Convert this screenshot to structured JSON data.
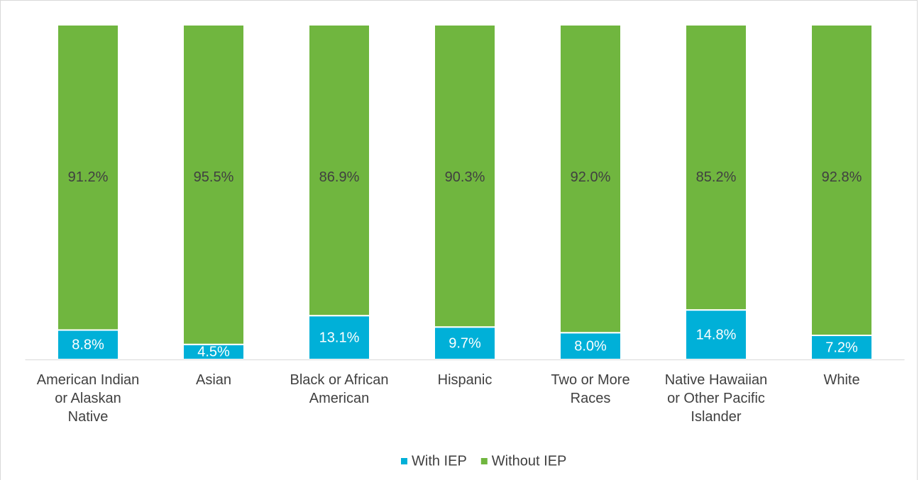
{
  "chart_data": {
    "type": "stacked_bar",
    "categories": [
      "American Indian or Alaskan Native",
      "Asian",
      "Black or African American",
      "Hispanic",
      "Two or More Races",
      "Native Hawaiian or Other Pacific Islander",
      "White"
    ],
    "series": [
      {
        "name": "With IEP",
        "color": "#00b0d8",
        "values": [
          8.8,
          4.5,
          13.1,
          9.7,
          8.0,
          14.8,
          7.2
        ],
        "value_labels": [
          "8.8%",
          "4.5%",
          "13.1%",
          "9.7%",
          "8.0%",
          "14.8%",
          "7.2%"
        ]
      },
      {
        "name": "Without IEP",
        "color": "#70b63f",
        "values": [
          91.2,
          95.5,
          86.9,
          90.3,
          92.0,
          85.2,
          92.8
        ],
        "value_labels": [
          "91.2%",
          "95.5%",
          "86.9%",
          "90.3%",
          "92.0%",
          "85.2%",
          "92.8%"
        ]
      }
    ],
    "ylim": [
      0,
      100
    ],
    "legend": "bottom"
  }
}
